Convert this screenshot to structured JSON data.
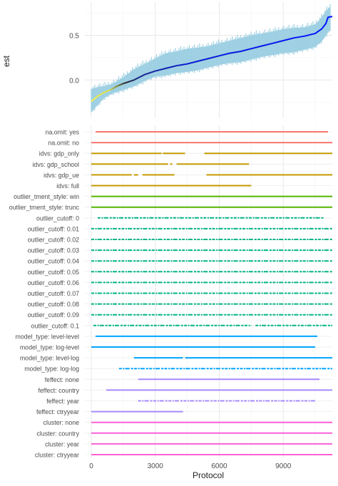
{
  "chart_data": [
    {
      "type": "line",
      "title": "",
      "xlabel": "",
      "ylabel": "est",
      "ylim": [
        -0.42,
        0.87
      ],
      "xlim": [
        -300,
        11300
      ],
      "yticks": [
        0.0,
        0.5
      ],
      "ytick_labels": [
        "0.0",
        "0.5"
      ],
      "grid": true,
      "legend": "none",
      "series": [
        {
          "name": "",
          "kind": "ribbon",
          "color": "#9fd0e3",
          "x": [
            0,
            300,
            600,
            1000,
            1500,
            2000,
            2500,
            3000,
            3500,
            4000,
            4500,
            5000,
            5500,
            6000,
            6500,
            7000,
            7500,
            8000,
            8500,
            9000,
            9500,
            10000,
            10500,
            10800,
            11000,
            11200
          ],
          "lower": [
            -0.36,
            -0.28,
            -0.2,
            -0.15,
            -0.11,
            -0.07,
            -0.01,
            0.04,
            0.05,
            0.08,
            0.09,
            0.11,
            0.14,
            0.17,
            0.19,
            0.2,
            0.23,
            0.26,
            0.28,
            0.3,
            0.31,
            0.34,
            0.37,
            0.43,
            0.5,
            0.56
          ],
          "upper": [
            -0.1,
            -0.08,
            -0.07,
            -0.04,
            0.03,
            0.12,
            0.18,
            0.24,
            0.3,
            0.32,
            0.35,
            0.36,
            0.38,
            0.41,
            0.44,
            0.47,
            0.5,
            0.52,
            0.54,
            0.57,
            0.58,
            0.59,
            0.62,
            0.7,
            0.77,
            0.82
          ]
        },
        {
          "name": "",
          "kind": "line",
          "color": "gradient",
          "x": [
            0,
            300,
            600,
            900,
            1200,
            1500,
            2000,
            2500,
            3000,
            3500,
            4000,
            4500,
            5000,
            5500,
            6000,
            6500,
            7000,
            7500,
            8000,
            8500,
            9000,
            9500,
            10000,
            10500,
            10800,
            11000,
            11100,
            11300
          ],
          "y": [
            -0.24,
            -0.18,
            -0.14,
            -0.11,
            -0.07,
            -0.04,
            0.0,
            0.06,
            0.1,
            0.13,
            0.16,
            0.18,
            0.21,
            0.24,
            0.27,
            0.3,
            0.32,
            0.35,
            0.38,
            0.41,
            0.44,
            0.47,
            0.49,
            0.52,
            0.57,
            0.63,
            0.7,
            0.71
          ]
        }
      ]
    },
    {
      "type": "scatter",
      "title": "",
      "xlabel": "Protocol",
      "ylabel": "",
      "xlim": [
        -300,
        11300
      ],
      "xticks": [
        0,
        3000,
        6000,
        9000
      ],
      "xtick_labels": [
        "0",
        "3000",
        "6000",
        "9000"
      ],
      "grid": true,
      "legend": "none",
      "rows": [
        {
          "label": "na.omit: yes",
          "color": "#f8766d",
          "segments": [
            [
              200,
              11100
            ]
          ],
          "sparse": false
        },
        {
          "label": "na.omit: no",
          "color": "#f8766d",
          "segments": [
            [
              0,
              11300
            ]
          ],
          "sparse": false
        },
        {
          "label": "idvs: gdp_only",
          "color": "#c49a00",
          "segments": [
            [
              0,
              3300
            ],
            [
              3350,
              4400
            ],
            [
              5300,
              11300
            ]
          ],
          "sparse": false
        },
        {
          "label": "idvs: gdp_school",
          "color": "#c49a00",
          "segments": [
            [
              0,
              3600
            ],
            [
              3700,
              3800
            ],
            [
              4000,
              7400
            ]
          ],
          "sparse": false
        },
        {
          "label": "idvs: gdp_ue",
          "color": "#c49a00",
          "segments": [
            [
              0,
              1900
            ],
            [
              2000,
              2200
            ],
            [
              2400,
              3900
            ],
            [
              5400,
              11300
            ]
          ],
          "sparse": false
        },
        {
          "label": "idvs: full",
          "color": "#c49a00",
          "segments": [
            [
              0,
              7500
            ]
          ],
          "sparse": false
        },
        {
          "label": "outlier_tment_style: win",
          "color": "#53b400",
          "segments": [
            [
              0,
              11300
            ]
          ],
          "sparse": false
        },
        {
          "label": "outlier_tment_style: trunc",
          "color": "#53b400",
          "segments": [
            [
              0,
              11300
            ]
          ],
          "sparse": false
        },
        {
          "label": "outlier_cutoff: 0",
          "color": "#00b385",
          "segments": [
            [
              300,
              10900
            ]
          ],
          "sparse": true
        },
        {
          "label": "outlier_cutoff: 0.01",
          "color": "#00b385",
          "segments": [
            [
              0,
              11300
            ]
          ],
          "sparse": true
        },
        {
          "label": "outlier_cutoff: 0.02",
          "color": "#00b385",
          "segments": [
            [
              0,
              11300
            ]
          ],
          "sparse": true
        },
        {
          "label": "outlier_cutoff: 0.03",
          "color": "#00b385",
          "segments": [
            [
              0,
              11300
            ]
          ],
          "sparse": true
        },
        {
          "label": "outlier_cutoff: 0.04",
          "color": "#00b385",
          "segments": [
            [
              0,
              11300
            ]
          ],
          "sparse": true
        },
        {
          "label": "outlier_cutoff: 0.05",
          "color": "#00b385",
          "segments": [
            [
              0,
              11300
            ]
          ],
          "sparse": true
        },
        {
          "label": "outlier_cutoff: 0.06",
          "color": "#00b385",
          "segments": [
            [
              0,
              11300
            ]
          ],
          "sparse": true
        },
        {
          "label": "outlier_cutoff: 0.07",
          "color": "#00b385",
          "segments": [
            [
              0,
              11300
            ]
          ],
          "sparse": true
        },
        {
          "label": "outlier_cutoff: 0.08",
          "color": "#00b385",
          "segments": [
            [
              0,
              11300
            ]
          ],
          "sparse": true
        },
        {
          "label": "outlier_cutoff: 0.09",
          "color": "#00b385",
          "segments": [
            [
              0,
              11300
            ]
          ],
          "sparse": true
        },
        {
          "label": "outlier_cutoff: 0.1",
          "color": "#00b385",
          "segments": [
            [
              100,
              7500
            ],
            [
              7700,
              11300
            ]
          ],
          "sparse": true
        },
        {
          "label": "model_type: level-level",
          "color": "#00a5ff",
          "segments": [
            [
              200,
              10600
            ]
          ],
          "sparse": false
        },
        {
          "label": "model_type: log-level",
          "color": "#00a5ff",
          "segments": [
            [
              0,
              10500
            ]
          ],
          "sparse": false
        },
        {
          "label": "model_type: level-log",
          "color": "#00a5ff",
          "segments": [
            [
              2000,
              4300
            ],
            [
              4400,
              11300
            ]
          ],
          "sparse": false
        },
        {
          "label": "model_type: log-log",
          "color": "#00a5ff",
          "segments": [
            [
              1300,
              11300
            ]
          ],
          "sparse": true
        },
        {
          "label": "feffect: none",
          "color": "#a58aff",
          "segments": [
            [
              2200,
              10700
            ]
          ],
          "sparse": false
        },
        {
          "label": "feffect: country",
          "color": "#a58aff",
          "segments": [
            [
              700,
              11300
            ]
          ],
          "sparse": false
        },
        {
          "label": "feffect: year",
          "color": "#a58aff",
          "segments": [
            [
              2200,
              10500
            ]
          ],
          "sparse": true
        },
        {
          "label": "feffect: ctryyear",
          "color": "#a58aff",
          "segments": [
            [
              0,
              4300
            ]
          ],
          "sparse": false
        },
        {
          "label": "cluster: none",
          "color": "#fb61d7",
          "segments": [
            [
              0,
              11300
            ]
          ],
          "sparse": false
        },
        {
          "label": "cluster: country",
          "color": "#fb61d7",
          "segments": [
            [
              0,
              11300
            ]
          ],
          "sparse": false
        },
        {
          "label": "cluster: year",
          "color": "#fb61d7",
          "segments": [
            [
              0,
              11300
            ]
          ],
          "sparse": false
        },
        {
          "label": "cluster: ctryyear",
          "color": "#fb61d7",
          "segments": [
            [
              0,
              11300
            ]
          ],
          "sparse": false
        }
      ]
    }
  ]
}
